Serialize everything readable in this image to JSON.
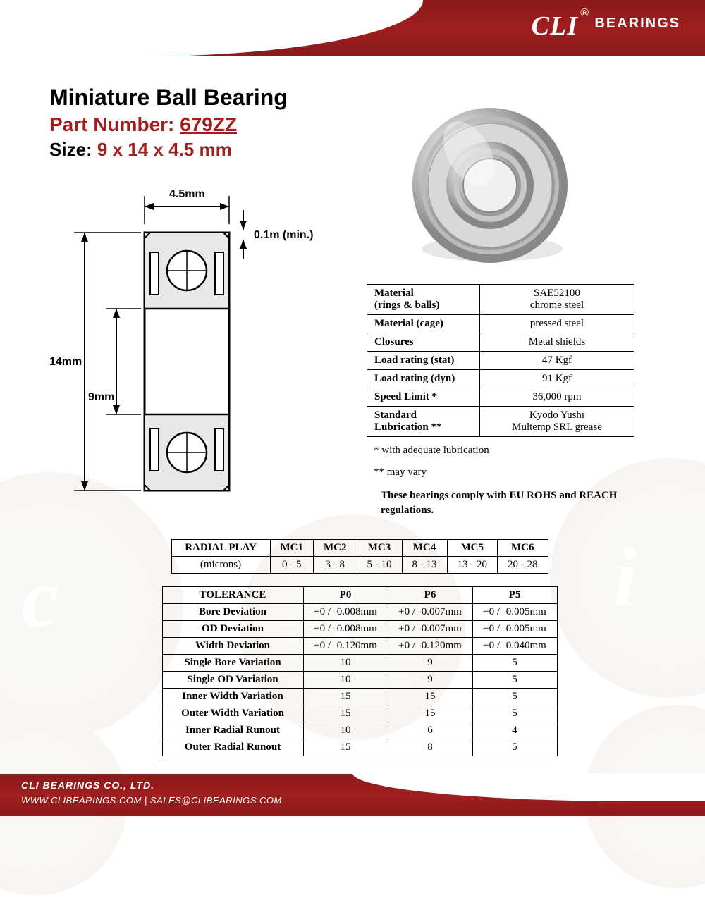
{
  "brand": {
    "name": "CLI",
    "reg": "®",
    "suffix": "BEARINGS"
  },
  "title": "Miniature Ball Bearing",
  "part_label": "Part Number:",
  "part_number": "679ZZ",
  "size_label": "Size:",
  "size_value": "9 x 14 x 4.5 mm",
  "drawing": {
    "width_dim": "4.5mm",
    "chamfer_dim": "0.1m (min.)",
    "od_dim": "14mm",
    "id_dim": "9mm"
  },
  "spec_rows": [
    [
      "Material (rings & balls)",
      "SAE52100 chrome steel"
    ],
    [
      "Material (cage)",
      "pressed steel"
    ],
    [
      "Closures",
      "Metal shields"
    ],
    [
      "Load rating (stat)",
      "47 Kgf"
    ],
    [
      "Load rating (dyn)",
      "91 Kgf"
    ],
    [
      "Speed Limit *",
      "36,000 rpm"
    ],
    [
      "Standard Lubrication  **",
      "Kyodo Yushi Multemp SRL grease"
    ]
  ],
  "note1": "  * with adequate lubrication",
  "note2": "** may vary",
  "compliance": "These bearings comply with EU ROHS and REACH  regulations.",
  "radial": {
    "header": [
      "RADIAL PLAY",
      "MC1",
      "MC2",
      "MC3",
      "MC4",
      "MC5",
      "MC6"
    ],
    "row_label": "(microns)",
    "values": [
      "0 - 5",
      "3 - 8",
      "5 - 10",
      "8 - 13",
      "13 - 20",
      "20 - 28"
    ]
  },
  "tolerance": {
    "header": [
      "TOLERANCE",
      "P0",
      "P6",
      "P5"
    ],
    "rows": [
      [
        "Bore Deviation",
        "+0 / -0.008mm",
        "+0 / -0.007mm",
        "+0 / -0.005mm"
      ],
      [
        "OD Deviation",
        "+0 / -0.008mm",
        "+0 / -0.007mm",
        "+0 / -0.005mm"
      ],
      [
        "Width Deviation",
        "+0 / -0.120mm",
        "+0 / -0.120mm",
        "+0 / -0.040mm"
      ],
      [
        "Single Bore Variation",
        "10",
        "9",
        "5"
      ],
      [
        "Single OD Variation",
        "10",
        "9",
        "5"
      ],
      [
        "Inner Width Variation",
        "15",
        "15",
        "5"
      ],
      [
        "Outer Width Variation",
        "15",
        "15",
        "5"
      ],
      [
        "Inner Radial Runout",
        "10",
        "6",
        "4"
      ],
      [
        "Outer Radial Runout",
        "15",
        "8",
        "5"
      ]
    ]
  },
  "footer": {
    "company": "CLI BEARINGS CO., LTD.",
    "links": "WWW.CLIBEARINGS.COM   |   SALES@CLIBEARINGS.COM"
  },
  "colors": {
    "brand_red": "#a01e1e",
    "dark_red": "#8a1a1a",
    "black": "#000000",
    "steel_light": "#e8e8e8",
    "steel_mid": "#c0c0c0",
    "steel_dark": "#909090"
  }
}
